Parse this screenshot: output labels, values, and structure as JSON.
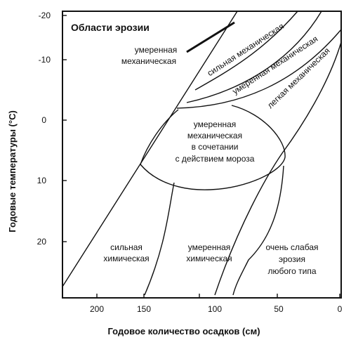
{
  "title": "Области эрозии",
  "y_axis": {
    "title": "Годовые температуры (°C)",
    "ticks": [
      "-20",
      "-10",
      "0",
      "10",
      "20"
    ]
  },
  "x_axis": {
    "title": "Годовое количество осадков (см)",
    "ticks": [
      "200",
      "150",
      "100",
      "50",
      "0"
    ]
  },
  "regions": {
    "moderate_mechanical": [
      "умеренная",
      "механическая"
    ],
    "strong_mechanical": "сильная механическая",
    "moderate_mechanical_band": "умеренная механическая",
    "light_mechanical": "легкая механическая",
    "moderate_frost": [
      "умеренная",
      "механическая",
      "в сочетании",
      "с действием мороза"
    ],
    "strong_chemical": [
      "сильная",
      "химическая"
    ],
    "moderate_chemical": [
      "умеренная",
      "химическая"
    ],
    "very_weak": [
      "очень слабая",
      "эрозия",
      "любого типа"
    ]
  }
}
